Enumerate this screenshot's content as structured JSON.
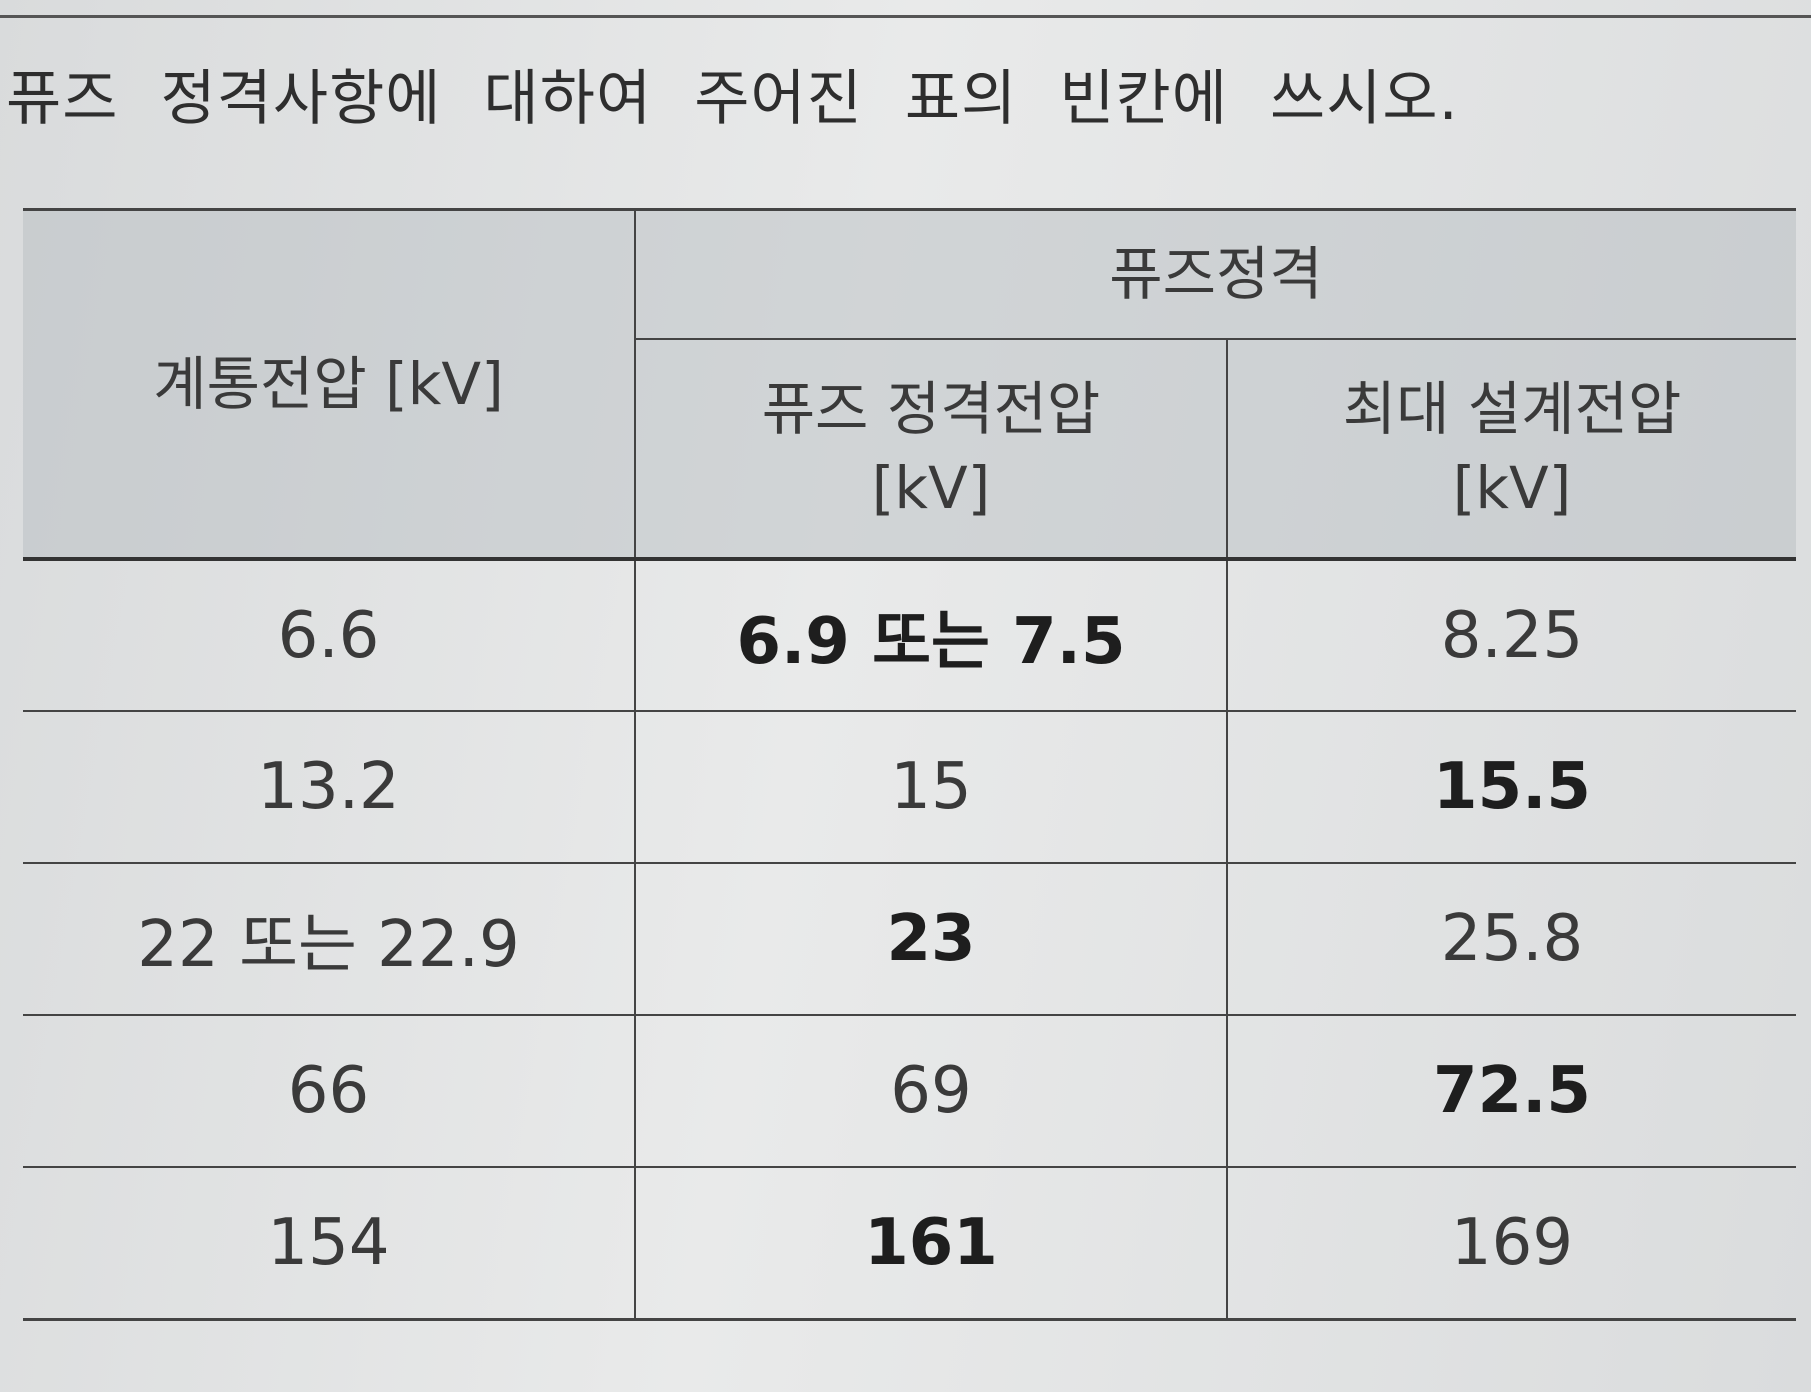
{
  "question": "퓨즈 정격사항에 대하여 주어진 표의 빈칸에 쓰시오.",
  "table": {
    "header": {
      "system_voltage": "계통전압 [kV]",
      "group": "퓨즈정격",
      "rated_voltage": "퓨즈 정격전압 [kV]",
      "max_design_voltage": "최대 설계전압 [kV]"
    },
    "rows": [
      [
        "6.6",
        "6.9 또는 7.5",
        "8.25"
      ],
      [
        "13.2",
        "15",
        "15.5"
      ],
      [
        "22 또는 22.9",
        "23",
        "25.8"
      ],
      [
        "66",
        "69",
        "72.5"
      ],
      [
        "154",
        "161",
        "169"
      ]
    ]
  }
}
